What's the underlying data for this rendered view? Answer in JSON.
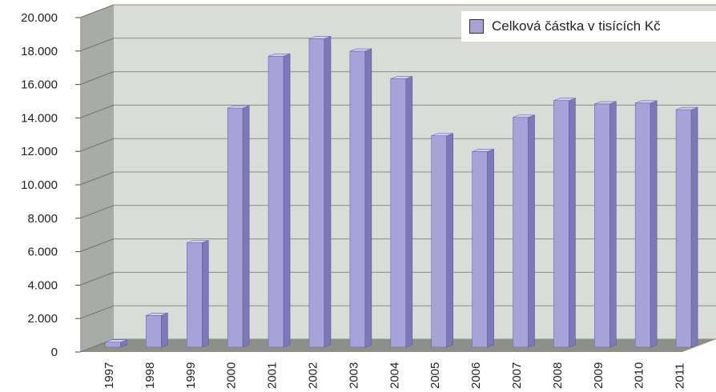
{
  "chart_data": {
    "type": "bar",
    "categories": [
      "1997",
      "1998",
      "1999",
      "2000",
      "2001",
      "2002",
      "2003",
      "2004",
      "2005",
      "2006",
      "2007",
      "2008",
      "2009",
      "2010",
      "2011"
    ],
    "series": [
      {
        "name": "Celková částka v tisících Kč",
        "values": [
          300,
          1900,
          6250,
          14300,
          17400,
          18450,
          17700,
          16050,
          12650,
          11700,
          13750,
          14750,
          14550,
          14600,
          14200
        ]
      }
    ],
    "yticks": [
      "20.000",
      "18.000",
      "16.000",
      "14.000",
      "12.000",
      "10.000",
      "8.000",
      "6.000",
      "4.000",
      "2.000",
      "0"
    ],
    "ylim": [
      0,
      20000
    ],
    "grid": true,
    "legend_position": "top-right",
    "colors": {
      "bar_front": "#a7a3d8",
      "bar_side": "#7d78b8",
      "bar_top": "#cfcdf0",
      "wall": "#d9dcd7",
      "side_wall": "#a9aca6"
    }
  }
}
